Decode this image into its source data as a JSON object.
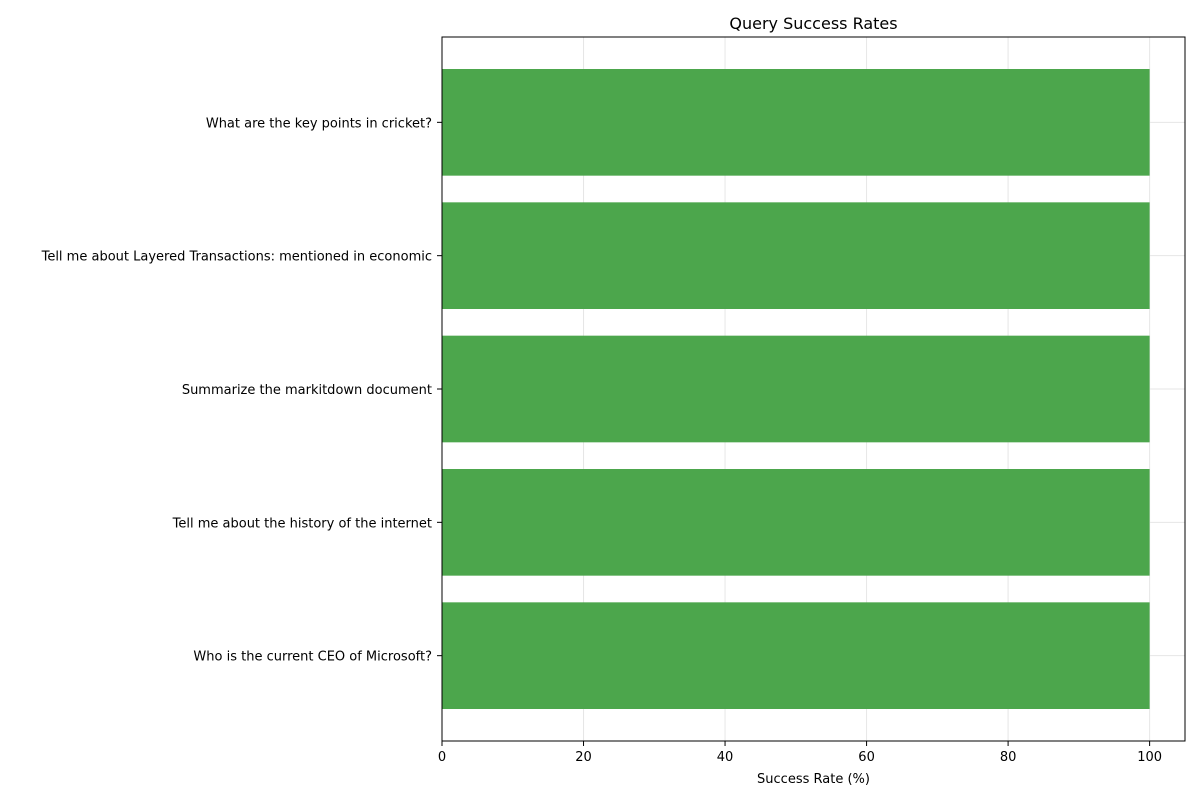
{
  "chart_data": {
    "type": "bar",
    "orientation": "horizontal",
    "title": "Query Success Rates",
    "xlabel": "Success Rate (%)",
    "ylabel": "",
    "categories": [
      "Who is the current CEO of Microsoft?",
      "Tell me about the history of the internet",
      "Summarize the markitdown document",
      "Tell me about Layered Transactions: mentioned in economic",
      "What are the key points in cricket?"
    ],
    "values": [
      100,
      100,
      100,
      100,
      100
    ],
    "xlim": [
      0,
      105
    ],
    "xticks": [
      0,
      20,
      40,
      60,
      80,
      100
    ],
    "grid": true,
    "bar_color": "#4ca64c"
  }
}
